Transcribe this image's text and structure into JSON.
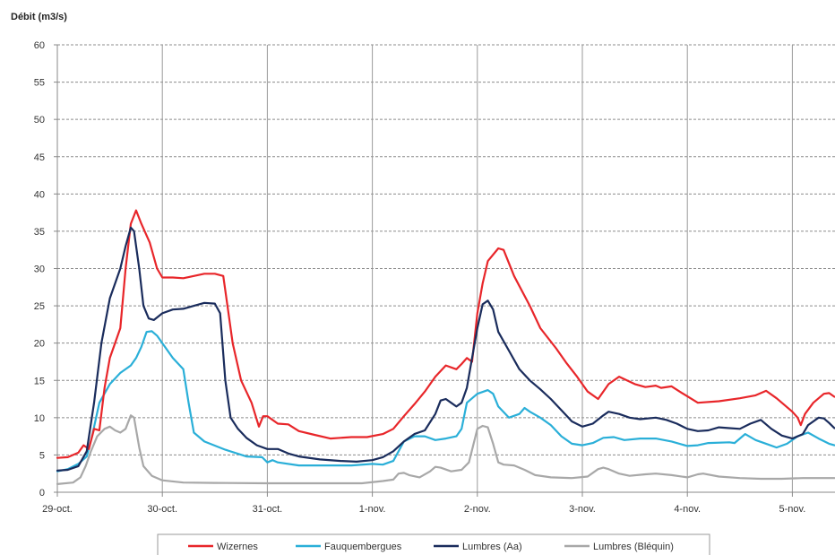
{
  "chart_data": {
    "type": "line",
    "title": "",
    "ylabel": "Débit (m3/s)",
    "xlabel": "",
    "ylim": [
      0,
      60
    ],
    "yticks": [
      0,
      5,
      10,
      15,
      20,
      25,
      30,
      35,
      40,
      45,
      50,
      55,
      60
    ],
    "xlim": [
      0,
      7.4
    ],
    "x_ticks": [
      {
        "x": 0,
        "label": "29-oct."
      },
      {
        "x": 1,
        "label": "30-oct."
      },
      {
        "x": 2,
        "label": "31-oct."
      },
      {
        "x": 3,
        "label": "1-nov."
      },
      {
        "x": 4,
        "label": "2-nov."
      },
      {
        "x": 5,
        "label": "3-nov."
      },
      {
        "x": 6,
        "label": "4-nov."
      },
      {
        "x": 7,
        "label": "5-nov."
      }
    ],
    "grid": {
      "horizontal": "dashed",
      "vertical": "solid"
    },
    "legend_position": "bottom",
    "series": [
      {
        "name": "Wizernes",
        "color": "#e8262a",
        "points": [
          [
            0,
            4.6
          ],
          [
            0.1,
            4.7
          ],
          [
            0.2,
            5.3
          ],
          [
            0.25,
            6.3
          ],
          [
            0.3,
            5.8
          ],
          [
            0.35,
            8.5
          ],
          [
            0.4,
            8.3
          ],
          [
            0.45,
            14
          ],
          [
            0.5,
            18
          ],
          [
            0.6,
            22
          ],
          [
            0.65,
            30
          ],
          [
            0.7,
            36
          ],
          [
            0.75,
            37.8
          ],
          [
            0.8,
            36
          ],
          [
            0.88,
            33.5
          ],
          [
            0.95,
            30
          ],
          [
            1.0,
            28.8
          ],
          [
            1.1,
            28.8
          ],
          [
            1.2,
            28.7
          ],
          [
            1.3,
            29
          ],
          [
            1.4,
            29.3
          ],
          [
            1.5,
            29.3
          ],
          [
            1.58,
            29
          ],
          [
            1.62,
            25
          ],
          [
            1.67,
            20
          ],
          [
            1.75,
            15
          ],
          [
            1.85,
            12
          ],
          [
            1.92,
            8.8
          ],
          [
            1.96,
            10.2
          ],
          [
            2.0,
            10.2
          ],
          [
            2.1,
            9.2
          ],
          [
            2.2,
            9.1
          ],
          [
            2.3,
            8.2
          ],
          [
            2.45,
            7.7
          ],
          [
            2.6,
            7.2
          ],
          [
            2.8,
            7.4
          ],
          [
            2.95,
            7.4
          ],
          [
            3.1,
            7.8
          ],
          [
            3.2,
            8.5
          ],
          [
            3.3,
            10.2
          ],
          [
            3.4,
            11.8
          ],
          [
            3.5,
            13.5
          ],
          [
            3.6,
            15.5
          ],
          [
            3.7,
            17.0
          ],
          [
            3.8,
            16.5
          ],
          [
            3.85,
            17.2
          ],
          [
            3.9,
            18.0
          ],
          [
            3.95,
            17.5
          ],
          [
            4.0,
            24
          ],
          [
            4.05,
            28
          ],
          [
            4.1,
            31
          ],
          [
            4.2,
            32.7
          ],
          [
            4.25,
            32.5
          ],
          [
            4.35,
            29
          ],
          [
            4.5,
            25
          ],
          [
            4.6,
            22
          ],
          [
            4.75,
            19.3
          ],
          [
            4.85,
            17.3
          ],
          [
            4.95,
            15.5
          ],
          [
            5.05,
            13.5
          ],
          [
            5.15,
            12.5
          ],
          [
            5.25,
            14.5
          ],
          [
            5.35,
            15.5
          ],
          [
            5.5,
            14.5
          ],
          [
            5.6,
            14.1
          ],
          [
            5.7,
            14.3
          ],
          [
            5.75,
            14.0
          ],
          [
            5.85,
            14.2
          ],
          [
            5.95,
            13.3
          ],
          [
            6.1,
            12.0
          ],
          [
            6.3,
            12.2
          ],
          [
            6.5,
            12.6
          ],
          [
            6.65,
            13.0
          ],
          [
            6.75,
            13.6
          ],
          [
            6.85,
            12.6
          ],
          [
            7.0,
            10.8
          ],
          [
            7.05,
            10.0
          ],
          [
            7.08,
            9.0
          ],
          [
            7.12,
            10.5
          ],
          [
            7.2,
            12.0
          ],
          [
            7.3,
            13.2
          ],
          [
            7.35,
            13.3
          ],
          [
            7.4,
            12.8
          ]
        ]
      },
      {
        "name": "Fauquembergues",
        "color": "#2aafd8",
        "points": [
          [
            0,
            2.8
          ],
          [
            0.1,
            3.1
          ],
          [
            0.2,
            3.8
          ],
          [
            0.28,
            4.8
          ],
          [
            0.33,
            7.5
          ],
          [
            0.4,
            12
          ],
          [
            0.5,
            14.5
          ],
          [
            0.6,
            16
          ],
          [
            0.7,
            17
          ],
          [
            0.75,
            18
          ],
          [
            0.8,
            19.5
          ],
          [
            0.85,
            21.5
          ],
          [
            0.9,
            21.6
          ],
          [
            0.95,
            21
          ],
          [
            1.0,
            20
          ],
          [
            1.1,
            18
          ],
          [
            1.2,
            16.5
          ],
          [
            1.25,
            12
          ],
          [
            1.3,
            8
          ],
          [
            1.4,
            6.8
          ],
          [
            1.6,
            5.7
          ],
          [
            1.8,
            4.8
          ],
          [
            1.95,
            4.7
          ],
          [
            2.0,
            4.0
          ],
          [
            2.05,
            4.3
          ],
          [
            2.1,
            4.0
          ],
          [
            2.3,
            3.6
          ],
          [
            2.5,
            3.6
          ],
          [
            2.8,
            3.6
          ],
          [
            3.0,
            3.8
          ],
          [
            3.1,
            3.7
          ],
          [
            3.2,
            4.2
          ],
          [
            3.3,
            6.8
          ],
          [
            3.4,
            7.5
          ],
          [
            3.5,
            7.5
          ],
          [
            3.6,
            7.0
          ],
          [
            3.7,
            7.2
          ],
          [
            3.8,
            7.5
          ],
          [
            3.85,
            8.5
          ],
          [
            3.9,
            12
          ],
          [
            4.0,
            13.2
          ],
          [
            4.1,
            13.7
          ],
          [
            4.15,
            13.2
          ],
          [
            4.2,
            11.5
          ],
          [
            4.3,
            10
          ],
          [
            4.4,
            10.5
          ],
          [
            4.45,
            11.3
          ],
          [
            4.5,
            10.8
          ],
          [
            4.6,
            10
          ],
          [
            4.7,
            9.0
          ],
          [
            4.8,
            7.5
          ],
          [
            4.9,
            6.5
          ],
          [
            5.0,
            6.3
          ],
          [
            5.1,
            6.6
          ],
          [
            5.2,
            7.3
          ],
          [
            5.3,
            7.4
          ],
          [
            5.4,
            7.0
          ],
          [
            5.55,
            7.2
          ],
          [
            5.7,
            7.2
          ],
          [
            5.85,
            6.8
          ],
          [
            6.0,
            6.2
          ],
          [
            6.1,
            6.3
          ],
          [
            6.2,
            6.6
          ],
          [
            6.4,
            6.7
          ],
          [
            6.45,
            6.6
          ],
          [
            6.5,
            7.2
          ],
          [
            6.55,
            7.8
          ],
          [
            6.65,
            7.0
          ],
          [
            6.75,
            6.5
          ],
          [
            6.85,
            6.0
          ],
          [
            6.95,
            6.5
          ],
          [
            7.05,
            7.5
          ],
          [
            7.15,
            8.0
          ],
          [
            7.25,
            7.2
          ],
          [
            7.35,
            6.5
          ],
          [
            7.4,
            6.3
          ]
        ]
      },
      {
        "name": "Lumbres (Aa)",
        "color": "#1a2c5c",
        "points": [
          [
            0,
            2.9
          ],
          [
            0.1,
            3.0
          ],
          [
            0.2,
            3.5
          ],
          [
            0.28,
            5.5
          ],
          [
            0.35,
            12
          ],
          [
            0.42,
            20
          ],
          [
            0.5,
            26
          ],
          [
            0.6,
            30
          ],
          [
            0.65,
            33
          ],
          [
            0.7,
            35.5
          ],
          [
            0.73,
            35.0
          ],
          [
            0.78,
            30
          ],
          [
            0.82,
            25
          ],
          [
            0.87,
            23.3
          ],
          [
            0.92,
            23.1
          ],
          [
            1.0,
            24
          ],
          [
            1.1,
            24.5
          ],
          [
            1.2,
            24.6
          ],
          [
            1.3,
            25
          ],
          [
            1.4,
            25.4
          ],
          [
            1.5,
            25.3
          ],
          [
            1.55,
            24.0
          ],
          [
            1.6,
            15
          ],
          [
            1.65,
            10
          ],
          [
            1.72,
            8.5
          ],
          [
            1.8,
            7.3
          ],
          [
            1.9,
            6.3
          ],
          [
            2.0,
            5.8
          ],
          [
            2.1,
            5.8
          ],
          [
            2.2,
            5.2
          ],
          [
            2.3,
            4.8
          ],
          [
            2.5,
            4.4
          ],
          [
            2.7,
            4.2
          ],
          [
            2.85,
            4.1
          ],
          [
            3.0,
            4.3
          ],
          [
            3.1,
            4.7
          ],
          [
            3.2,
            5.5
          ],
          [
            3.3,
            6.8
          ],
          [
            3.4,
            7.8
          ],
          [
            3.5,
            8.3
          ],
          [
            3.6,
            10.5
          ],
          [
            3.65,
            12.3
          ],
          [
            3.7,
            12.5
          ],
          [
            3.75,
            12
          ],
          [
            3.8,
            11.5
          ],
          [
            3.85,
            12
          ],
          [
            3.9,
            14
          ],
          [
            3.95,
            18
          ],
          [
            4.0,
            22
          ],
          [
            4.05,
            25.2
          ],
          [
            4.1,
            25.7
          ],
          [
            4.15,
            24.5
          ],
          [
            4.2,
            21.5
          ],
          [
            4.3,
            19
          ],
          [
            4.4,
            16.5
          ],
          [
            4.5,
            15
          ],
          [
            4.6,
            13.8
          ],
          [
            4.7,
            12.5
          ],
          [
            4.8,
            11
          ],
          [
            4.9,
            9.5
          ],
          [
            5.0,
            8.8
          ],
          [
            5.1,
            9.2
          ],
          [
            5.2,
            10.3
          ],
          [
            5.25,
            10.8
          ],
          [
            5.35,
            10.5
          ],
          [
            5.45,
            10
          ],
          [
            5.55,
            9.8
          ],
          [
            5.7,
            10
          ],
          [
            5.8,
            9.7
          ],
          [
            5.9,
            9.2
          ],
          [
            6.0,
            8.5
          ],
          [
            6.1,
            8.2
          ],
          [
            6.2,
            8.3
          ],
          [
            6.3,
            8.7
          ],
          [
            6.4,
            8.6
          ],
          [
            6.5,
            8.5
          ],
          [
            6.6,
            9.2
          ],
          [
            6.7,
            9.7
          ],
          [
            6.8,
            8.5
          ],
          [
            6.9,
            7.6
          ],
          [
            7.0,
            7.2
          ],
          [
            7.1,
            7.8
          ],
          [
            7.15,
            9.0
          ],
          [
            7.25,
            10.0
          ],
          [
            7.3,
            9.9
          ],
          [
            7.35,
            9.3
          ],
          [
            7.4,
            8.6
          ]
        ]
      },
      {
        "name": "Lumbres (Bléquin)",
        "color": "#a8a8a8",
        "points": [
          [
            0,
            1.1
          ],
          [
            0.15,
            1.3
          ],
          [
            0.22,
            2.0
          ],
          [
            0.27,
            3.5
          ],
          [
            0.32,
            5.5
          ],
          [
            0.38,
            7.5
          ],
          [
            0.45,
            8.5
          ],
          [
            0.5,
            8.8
          ],
          [
            0.55,
            8.3
          ],
          [
            0.6,
            8.0
          ],
          [
            0.65,
            8.5
          ],
          [
            0.7,
            10.3
          ],
          [
            0.73,
            10.0
          ],
          [
            0.78,
            6.0
          ],
          [
            0.82,
            3.5
          ],
          [
            0.9,
            2.2
          ],
          [
            1.0,
            1.6
          ],
          [
            1.2,
            1.3
          ],
          [
            1.5,
            1.25
          ],
          [
            2.0,
            1.2
          ],
          [
            2.5,
            1.2
          ],
          [
            2.9,
            1.2
          ],
          [
            3.1,
            1.5
          ],
          [
            3.2,
            1.7
          ],
          [
            3.25,
            2.5
          ],
          [
            3.3,
            2.6
          ],
          [
            3.35,
            2.3
          ],
          [
            3.45,
            2.0
          ],
          [
            3.55,
            2.8
          ],
          [
            3.6,
            3.4
          ],
          [
            3.65,
            3.3
          ],
          [
            3.75,
            2.8
          ],
          [
            3.85,
            3.0
          ],
          [
            3.92,
            4.0
          ],
          [
            4.0,
            8.5
          ],
          [
            4.05,
            8.9
          ],
          [
            4.1,
            8.7
          ],
          [
            4.15,
            6.5
          ],
          [
            4.2,
            4.0
          ],
          [
            4.25,
            3.7
          ],
          [
            4.35,
            3.6
          ],
          [
            4.45,
            3.0
          ],
          [
            4.55,
            2.3
          ],
          [
            4.7,
            2.0
          ],
          [
            4.9,
            1.9
          ],
          [
            5.05,
            2.1
          ],
          [
            5.15,
            3.1
          ],
          [
            5.2,
            3.3
          ],
          [
            5.25,
            3.1
          ],
          [
            5.35,
            2.5
          ],
          [
            5.45,
            2.2
          ],
          [
            5.6,
            2.4
          ],
          [
            5.7,
            2.5
          ],
          [
            5.85,
            2.3
          ],
          [
            6.0,
            2.0
          ],
          [
            6.1,
            2.4
          ],
          [
            6.15,
            2.5
          ],
          [
            6.3,
            2.1
          ],
          [
            6.5,
            1.9
          ],
          [
            6.7,
            1.8
          ],
          [
            6.9,
            1.8
          ],
          [
            7.1,
            1.9
          ],
          [
            7.3,
            1.9
          ],
          [
            7.4,
            1.9
          ]
        ]
      }
    ]
  }
}
